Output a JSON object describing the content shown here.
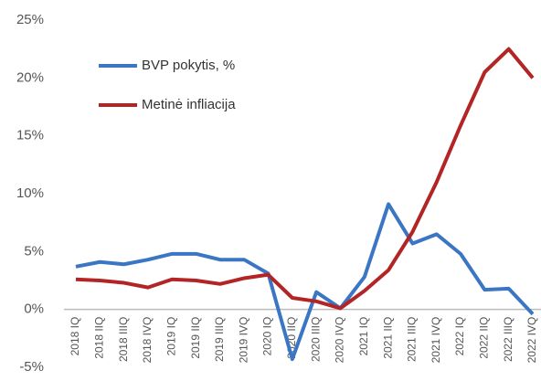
{
  "chart_data": {
    "type": "line",
    "categories": [
      "2018 IQ",
      "2018 IIQ",
      "2018 IIIQ",
      "2018 IVQ",
      "2019 IQ",
      "2019 IIQ",
      "2019 IIIQ",
      "2019 IVQ",
      "2020 IQ",
      "2020 IIQ",
      "2020 IIIQ",
      "2020 IVQ",
      "2021 IQ",
      "2021 IIQ",
      "2021 IIIQ",
      "2021 IVQ",
      "2022 IQ",
      "2022 IIQ",
      "2022 IIIQ",
      "2022 IVQ"
    ],
    "series": [
      {
        "name": "BVP pokytis, %",
        "color": "#3b76c4",
        "values": [
          3.7,
          4.1,
          3.9,
          4.3,
          4.8,
          4.8,
          4.3,
          4.3,
          3.1,
          -4.3,
          1.5,
          0.1,
          2.8,
          9.1,
          5.7,
          6.5,
          4.8,
          1.7,
          1.8,
          -0.4
        ]
      },
      {
        "name": "Metinė infliacija",
        "color": "#b32525",
        "values": [
          2.6,
          2.5,
          2.3,
          1.9,
          2.6,
          2.5,
          2.2,
          2.7,
          3.0,
          1.0,
          0.7,
          0.1,
          1.6,
          3.4,
          6.7,
          11.0,
          15.9,
          20.5,
          22.5,
          20.0
        ]
      }
    ],
    "ylim": [
      -5,
      25
    ],
    "yticks": [
      {
        "value": -5,
        "label": "-5%"
      },
      {
        "value": 0,
        "label": "0%"
      },
      {
        "value": 5,
        "label": "5%"
      },
      {
        "value": 10,
        "label": "10%"
      },
      {
        "value": 15,
        "label": "15%"
      },
      {
        "value": 20,
        "label": "20%"
      },
      {
        "value": 25,
        "label": "25%"
      }
    ],
    "grid": false,
    "legend": "upper-left"
  }
}
